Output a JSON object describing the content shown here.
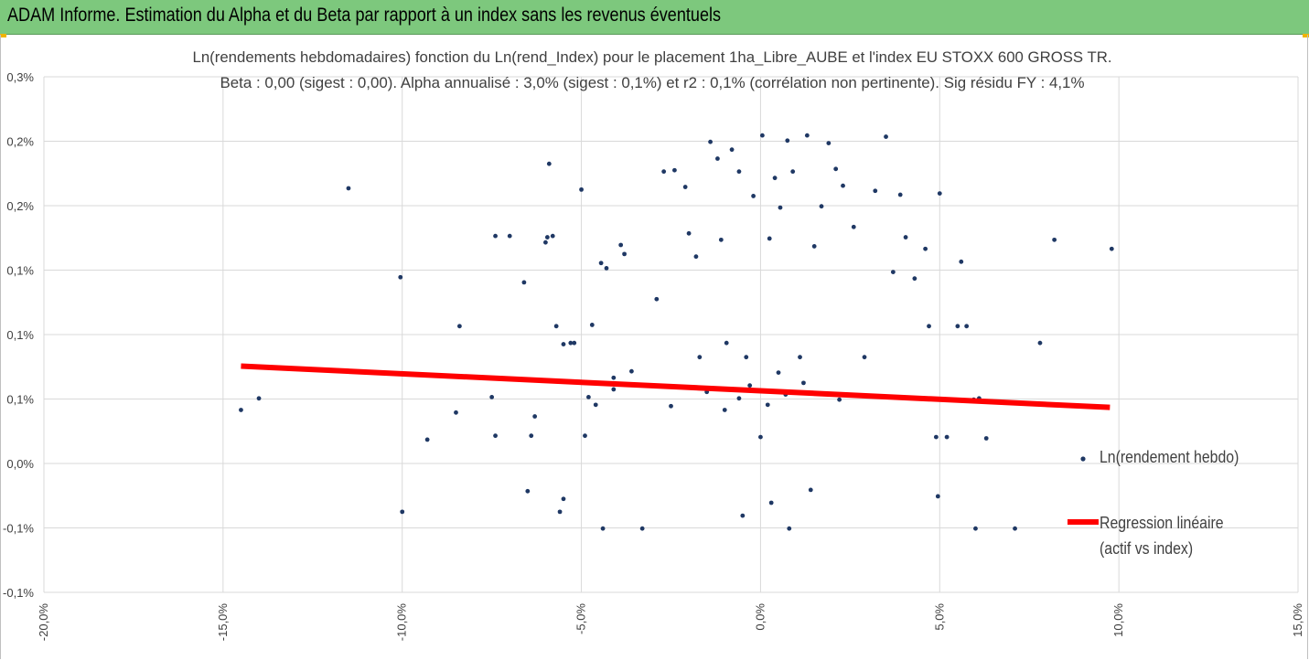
{
  "header": {
    "title": "ADAM Informe. Estimation du Alpha et du Beta par rapport à un index sans les revenus éventuels"
  },
  "colors": {
    "header_bg": "#7dc87d",
    "scatter": "#1f3864",
    "regression": "#ff0000",
    "grid": "#d9d9d9",
    "corner_marks": "#f0b400"
  },
  "chart_data": {
    "type": "scatter",
    "title": "Ln(rendements hebdomadaires) fonction du Ln(rend_Index) pour le placement 1ha_Libre_AUBE et l'index EU STOXX 600 GROSS TR.",
    "subtitle": "Beta : 0,00 (sigest : 0,00). Alpha annualisé : 3,0% (sigest : 0,1%) et r2 : 0,1% (corrélation non pertinente). Sig résidu FY : 4,1%",
    "xlabel": "",
    "ylabel": "",
    "xlim": [
      -20,
      15
    ],
    "ylim": [
      -0.1,
      0.3
    ],
    "x_ticks": [
      -20,
      -15,
      -10,
      -5,
      0,
      5,
      10,
      15
    ],
    "x_tick_labels": [
      "-20,0%",
      "-15,0%",
      "-10,0%",
      "-5,0%",
      "0,0%",
      "5,0%",
      "10,0%",
      "15,0%"
    ],
    "y_ticks": [
      -0.1,
      -0.05,
      0,
      0.05,
      0.1,
      0.15,
      0.2,
      0.25,
      0.3
    ],
    "y_tick_labels": [
      "-0,1%",
      "-0,1%",
      "0,0%",
      "0,1%",
      "0,1%",
      "0,1%",
      "0,2%",
      "0,2%",
      "0,3%"
    ],
    "grid": true,
    "legend_position": "right",
    "series": [
      {
        "name": "Ln(rendement hebdo)",
        "kind": "scatter",
        "points": [
          [
            -14.5,
            0.0415
          ],
          [
            -14.0,
            0.0505
          ],
          [
            -11.5,
            0.2135
          ],
          [
            -10.05,
            0.1445
          ],
          [
            -10.0,
            -0.0375
          ],
          [
            -9.3,
            0.0185
          ],
          [
            -8.5,
            0.0395
          ],
          [
            -8.4,
            0.1065
          ],
          [
            -7.5,
            0.0515
          ],
          [
            -7.4,
            0.0215
          ],
          [
            -7.4,
            0.1765
          ],
          [
            -7.0,
            0.1765
          ],
          [
            -6.6,
            0.1405
          ],
          [
            -6.5,
            -0.0215
          ],
          [
            -6.4,
            0.0215
          ],
          [
            -6.3,
            0.0365
          ],
          [
            -6.0,
            0.1715
          ],
          [
            -5.95,
            0.1755
          ],
          [
            -5.9,
            0.2325
          ],
          [
            -5.8,
            0.1765
          ],
          [
            -5.7,
            0.1065
          ],
          [
            -5.6,
            -0.0375
          ],
          [
            -5.5,
            -0.0275
          ],
          [
            -5.5,
            0.0925
          ],
          [
            -5.3,
            0.0935
          ],
          [
            -5.2,
            0.0935
          ],
          [
            -5.0,
            0.2125
          ],
          [
            -4.9,
            0.0215
          ],
          [
            -4.8,
            0.0515
          ],
          [
            -4.7,
            0.1075
          ],
          [
            -4.6,
            0.0455
          ],
          [
            -4.45,
            0.1555
          ],
          [
            -4.3,
            0.1515
          ],
          [
            -4.4,
            -0.0505
          ],
          [
            -4.1,
            0.0665
          ],
          [
            -4.1,
            0.0575
          ],
          [
            -3.9,
            0.1695
          ],
          [
            -3.8,
            0.1625
          ],
          [
            -3.6,
            0.0715
          ],
          [
            -3.3,
            -0.0505
          ],
          [
            -2.9,
            0.1275
          ],
          [
            -2.7,
            0.2265
          ],
          [
            -2.4,
            0.2275
          ],
          [
            -2.1,
            0.2145
          ],
          [
            -2.0,
            0.1785
          ],
          [
            -1.8,
            0.1605
          ],
          [
            -1.7,
            0.0825
          ],
          [
            -1.4,
            0.2495
          ],
          [
            -1.2,
            0.2365
          ],
          [
            -1.1,
            0.1735
          ],
          [
            -0.95,
            0.0935
          ],
          [
            -0.8,
            0.2435
          ],
          [
            -0.6,
            0.2265
          ],
          [
            -0.4,
            0.0825
          ],
          [
            -0.2,
            0.2075
          ],
          [
            0.05,
            0.2545
          ],
          [
            0.25,
            0.1745
          ],
          [
            0.4,
            0.2215
          ],
          [
            0.55,
            0.1985
          ],
          [
            0.75,
            0.2505
          ],
          [
            0.9,
            0.2265
          ],
          [
            1.1,
            0.0825
          ],
          [
            1.3,
            0.2545
          ],
          [
            1.5,
            0.1685
          ],
          [
            1.7,
            0.1995
          ],
          [
            1.9,
            0.2485
          ],
          [
            2.1,
            0.2285
          ],
          [
            2.3,
            0.2155
          ],
          [
            2.6,
            0.1835
          ],
          [
            2.9,
            0.0825
          ],
          [
            3.2,
            0.2115
          ],
          [
            3.5,
            0.2535
          ],
          [
            3.7,
            0.1485
          ],
          [
            3.9,
            0.2085
          ],
          [
            4.05,
            0.1755
          ],
          [
            4.3,
            0.1435
          ],
          [
            4.6,
            0.1665
          ],
          [
            4.7,
            0.1065
          ],
          [
            4.9,
            0.0205
          ],
          [
            4.95,
            -0.0255
          ],
          [
            5.0,
            0.2095
          ],
          [
            5.2,
            0.0205
          ],
          [
            5.5,
            0.1065
          ],
          [
            5.6,
            0.1565
          ],
          [
            5.75,
            0.1065
          ],
          [
            5.95,
            0.0495
          ],
          [
            6.0,
            -0.0505
          ],
          [
            6.1,
            0.0505
          ],
          [
            6.3,
            0.0195
          ],
          [
            7.1,
            -0.0505
          ],
          [
            7.8,
            0.0935
          ],
          [
            8.2,
            0.1735
          ],
          [
            9.8,
            0.1665
          ],
          [
            -1.0,
            0.0415
          ],
          [
            0.0,
            0.0205
          ],
          [
            0.8,
            -0.0505
          ],
          [
            -0.5,
            -0.0405
          ],
          [
            0.3,
            -0.0305
          ],
          [
            1.4,
            -0.0205
          ],
          [
            -0.3,
            0.0605
          ],
          [
            0.5,
            0.0705
          ],
          [
            -0.6,
            0.0505
          ],
          [
            0.2,
            0.0455
          ],
          [
            0.7,
            0.0535
          ],
          [
            1.2,
            0.0625
          ],
          [
            -1.5,
            0.0555
          ],
          [
            2.2,
            0.0495
          ],
          [
            -2.5,
            0.0445
          ]
        ]
      },
      {
        "name": "Regression linéaire (actif vs index)",
        "kind": "line",
        "points": [
          [
            -14.5,
            0.0755
          ],
          [
            9.75,
            0.0435
          ]
        ]
      }
    ]
  },
  "legend": {
    "scatter_label": "Ln(rendement hebdo)",
    "line_label_1": "Regression linéaire",
    "line_label_2": "(actif vs index)"
  }
}
